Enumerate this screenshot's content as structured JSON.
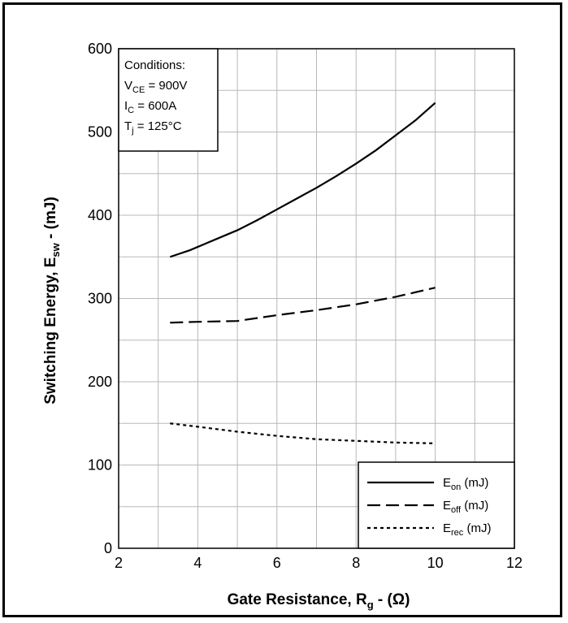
{
  "chart_data": {
    "type": "line",
    "xlabel": {
      "main": "Gate Resistance, R",
      "sub": "g",
      "tail": " - (Ω)"
    },
    "ylabel": {
      "main": "Switching Energy, E",
      "sub": "sw",
      "tail": " - (mJ)"
    },
    "xlim": [
      2,
      12
    ],
    "ylim": [
      0,
      600
    ],
    "xticks": [
      2,
      4,
      6,
      8,
      10,
      12
    ],
    "yticks": [
      0,
      100,
      200,
      300,
      400,
      500,
      600
    ],
    "grid": true,
    "legend_position": "bottom-right",
    "conditions": {
      "title": "Conditions:",
      "lines": [
        {
          "pre": "V",
          "sub": "CE",
          "post": " = 900V"
        },
        {
          "pre": "I",
          "sub": "C",
          "post": " = 600A"
        },
        {
          "pre": "T",
          "sub": "j",
          "post": " = 125°C"
        }
      ]
    },
    "series": [
      {
        "name": "E",
        "name_sub": "on",
        "name_tail": " (mJ)",
        "style": "solid",
        "x": [
          3.3,
          3.8,
          4.5,
          5.0,
          5.5,
          6.0,
          6.5,
          7.0,
          7.5,
          8.0,
          8.5,
          9.0,
          9.5,
          10.0
        ],
        "y": [
          350,
          358,
          372,
          382,
          394,
          407,
          420,
          433,
          447,
          462,
          478,
          496,
          514,
          535
        ]
      },
      {
        "name": "E",
        "name_sub": "off",
        "name_tail": " (mJ)",
        "style": "dashed",
        "x": [
          3.3,
          4.0,
          5.0,
          6.0,
          7.0,
          8.0,
          9.0,
          10.0
        ],
        "y": [
          271,
          272,
          273,
          280,
          286,
          293,
          302,
          313
        ]
      },
      {
        "name": "E",
        "name_sub": "rec",
        "name_tail": " (mJ)",
        "style": "dotted",
        "x": [
          3.3,
          4.0,
          5.0,
          6.0,
          7.0,
          8.0,
          9.0,
          10.0
        ],
        "y": [
          150,
          146,
          140,
          135,
          131,
          129,
          127,
          126
        ]
      }
    ]
  }
}
